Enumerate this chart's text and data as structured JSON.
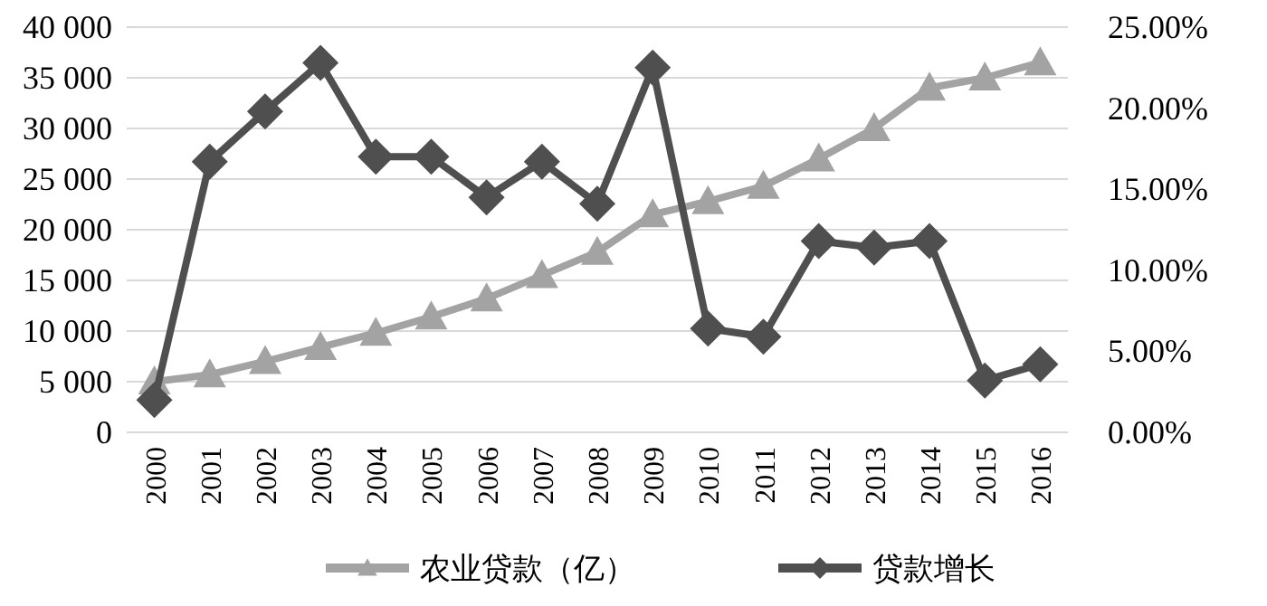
{
  "chart_data": {
    "type": "line",
    "categories": [
      "2000",
      "2001",
      "2002",
      "2003",
      "2004",
      "2005",
      "2006",
      "2007",
      "2008",
      "2009",
      "2010",
      "2011",
      "2012",
      "2013",
      "2014",
      "2015",
      "2016"
    ],
    "series": [
      {
        "name": "农业贷款（亿）",
        "color": "#a3a3a3",
        "marker": "triangle",
        "values": [
          5000,
          5700,
          7000,
          8400,
          9800,
          11400,
          13200,
          15500,
          17800,
          21500,
          22800,
          24300,
          27000,
          30000,
          34000,
          35000,
          36500
        ]
      },
      {
        "name": "贷款增长",
        "color": "#4f4f4f",
        "marker": "diamond",
        "axis": "y2",
        "values": [
          2.0,
          16.7,
          19.8,
          22.8,
          17.0,
          17.0,
          14.5,
          16.7,
          14.1,
          22.5,
          6.4,
          5.9,
          11.8,
          11.4,
          11.8,
          3.2,
          4.2
        ]
      }
    ],
    "ylim": [
      0,
      40000
    ],
    "yticks": [
      {
        "value": 0,
        "label": "0"
      },
      {
        "value": 5000,
        "label": "5 000"
      },
      {
        "value": 10000,
        "label": "10 000"
      },
      {
        "value": 15000,
        "label": "15 000"
      },
      {
        "value": 20000,
        "label": "20 000"
      },
      {
        "value": 25000,
        "label": "25 000"
      },
      {
        "value": 30000,
        "label": "30 000"
      },
      {
        "value": 35000,
        "label": "35 000"
      },
      {
        "value": 40000,
        "label": "40 000"
      }
    ],
    "y2lim": [
      0,
      25
    ],
    "y2ticks": [
      {
        "value": 0,
        "label": "0.00%"
      },
      {
        "value": 5,
        "label": "5.00%"
      },
      {
        "value": 10,
        "label": "10.00%"
      },
      {
        "value": 15,
        "label": "15.00%"
      },
      {
        "value": 20,
        "label": "20.00%"
      },
      {
        "value": 25,
        "label": "25.00%"
      }
    ],
    "grid": "y",
    "legend": "bottom"
  }
}
